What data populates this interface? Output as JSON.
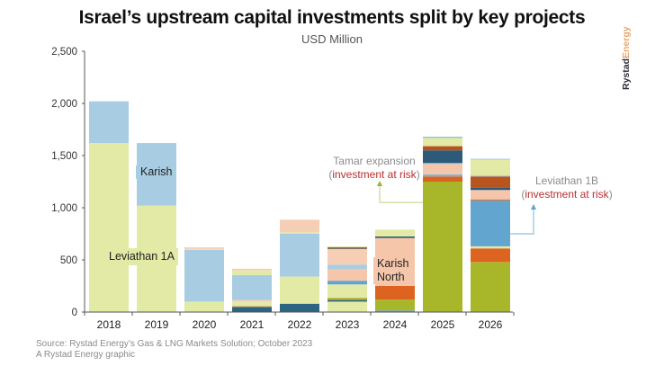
{
  "chart_data": {
    "type": "bar",
    "stacked": true,
    "title": "Israel’s upstream capital investments split by key projects",
    "subtitle": "USD Million",
    "xlabel": "",
    "ylabel": "",
    "ylim": [
      0,
      2500
    ],
    "yticks": [
      0,
      500,
      1000,
      1500,
      2000,
      2500
    ],
    "ytick_labels": [
      "0",
      "500",
      "1,000",
      "1,500",
      "2,000",
      "2,500"
    ],
    "categories": [
      "2018",
      "2019",
      "2020",
      "2021",
      "2022",
      "2023",
      "2024",
      "2025",
      "2026"
    ],
    "grid": false,
    "legend": "none",
    "segments": [
      {
        "category": "2018",
        "stack": [
          {
            "value": 1620,
            "color": "#e2eaa6",
            "name": "Leviathan 1A"
          },
          {
            "value": 400,
            "color": "#a8cde3",
            "name": "Karish"
          }
        ]
      },
      {
        "category": "2019",
        "stack": [
          {
            "value": 1020,
            "color": "#e2eaa6",
            "name": "Leviathan 1A"
          },
          {
            "value": 600,
            "color": "#a8cde3",
            "name": "Karish"
          }
        ]
      },
      {
        "category": "2020",
        "stack": [
          {
            "value": 100,
            "color": "#e2eaa6"
          },
          {
            "value": 495,
            "color": "#a8cde3"
          },
          {
            "value": 10,
            "color": "#e2eaa6"
          },
          {
            "value": 15,
            "color": "#f6cdb5"
          }
        ]
      },
      {
        "category": "2021",
        "stack": [
          {
            "value": 45,
            "color": "#2c6482"
          },
          {
            "value": 10,
            "color": "#8c6a3e"
          },
          {
            "value": 45,
            "color": "#e2eaa6"
          },
          {
            "value": 15,
            "color": "#f6cdb5"
          },
          {
            "value": 240,
            "color": "#a8cde3"
          },
          {
            "value": 45,
            "color": "#e2eaa6"
          },
          {
            "value": 15,
            "color": "#f6cdb5"
          }
        ]
      },
      {
        "category": "2022",
        "stack": [
          {
            "value": 80,
            "color": "#2c6482"
          },
          {
            "value": 260,
            "color": "#e2eaa6"
          },
          {
            "value": 410,
            "color": "#a8cde3"
          },
          {
            "value": 15,
            "color": "#e2eaa6"
          },
          {
            "value": 120,
            "color": "#f6cdb5"
          }
        ]
      },
      {
        "category": "2023",
        "stack": [
          {
            "value": 100,
            "color": "#e2eaa6"
          },
          {
            "value": 15,
            "color": "#2c6482"
          },
          {
            "value": 20,
            "color": "#a8a626"
          },
          {
            "value": 130,
            "color": "#e2eaa6"
          },
          {
            "value": 35,
            "color": "#5fa4cf"
          },
          {
            "value": 110,
            "color": "#f6c6ab"
          },
          {
            "value": 45,
            "color": "#a8cde3"
          },
          {
            "value": 150,
            "color": "#f6cdb5"
          },
          {
            "value": 15,
            "color": "#6a5a4a"
          },
          {
            "value": 10,
            "color": "#e2eaa6"
          }
        ]
      },
      {
        "category": "2024",
        "stack": [
          {
            "value": 15,
            "color": "#5fa4cf"
          },
          {
            "value": 105,
            "color": "#a8b62a"
          },
          {
            "value": 130,
            "color": "#dc6320"
          },
          {
            "value": 460,
            "color": "#f6c6ab",
            "name": "Karish North"
          },
          {
            "value": 15,
            "color": "#2c5a6e"
          },
          {
            "value": 65,
            "color": "#e2eaa6"
          }
        ]
      },
      {
        "category": "2025",
        "stack": [
          {
            "value": 1250,
            "color": "#a8b62a"
          },
          {
            "value": 50,
            "color": "#dc6320"
          },
          {
            "value": 20,
            "color": "#7fb5d8"
          },
          {
            "value": 100,
            "color": "#f6c6ab"
          },
          {
            "value": 10,
            "color": "#7fb5d8"
          },
          {
            "value": 120,
            "color": "#2c5a78"
          },
          {
            "value": 40,
            "color": "#b8541e"
          },
          {
            "value": 80,
            "color": "#e2eaa6"
          },
          {
            "value": 10,
            "color": "#7fb5d8"
          }
        ]
      },
      {
        "category": "2026",
        "stack": [
          {
            "value": 480,
            "color": "#a8b62a"
          },
          {
            "value": 130,
            "color": "#dc6320"
          },
          {
            "value": 20,
            "color": "#e2eaa6"
          },
          {
            "value": 440,
            "color": "#62a6d0"
          },
          {
            "value": 10,
            "color": "#dc6320"
          },
          {
            "value": 90,
            "color": "#f6c6ab"
          },
          {
            "value": 20,
            "color": "#2c5a78"
          },
          {
            "value": 110,
            "color": "#b8541e"
          },
          {
            "value": 10,
            "color": "#a8cde3"
          },
          {
            "value": 150,
            "color": "#e2eaa6"
          },
          {
            "value": 10,
            "color": "#a8cde3"
          }
        ]
      }
    ],
    "totals": [
      2020,
      1620,
      620,
      415,
      885,
      630,
      790,
      1680,
      1470
    ],
    "annotations": [
      {
        "text": "Karish",
        "category": "2019"
      },
      {
        "text": "Leviathan 1A",
        "category": "2018-2019"
      },
      {
        "text": "Karish North",
        "category": "2024"
      },
      {
        "text": "Tamar expansion",
        "risk": "investment at risk",
        "category": "2025"
      },
      {
        "text": "Leviathan 1B",
        "risk": "investment at risk",
        "category": "2026"
      }
    ]
  },
  "labels": {
    "karish": "Karish",
    "leviathan1a": "Leviathan 1A",
    "karish_north_1": "Karish",
    "karish_north_2": "North",
    "tamar": "Tamar expansion",
    "tamar_risk": "investment at risk",
    "lev1b": "Leviathan 1B",
    "lev1b_risk": "investment at risk",
    "open_paren": "(",
    "close_paren": ")"
  },
  "footer": {
    "source": "Source: Rystad Energy’s Gas & LNG Markets Solution; October 2023",
    "credit": "A Rystad Energy graphic"
  },
  "brand": {
    "part1": "Rystad",
    "part2": "Energy"
  }
}
